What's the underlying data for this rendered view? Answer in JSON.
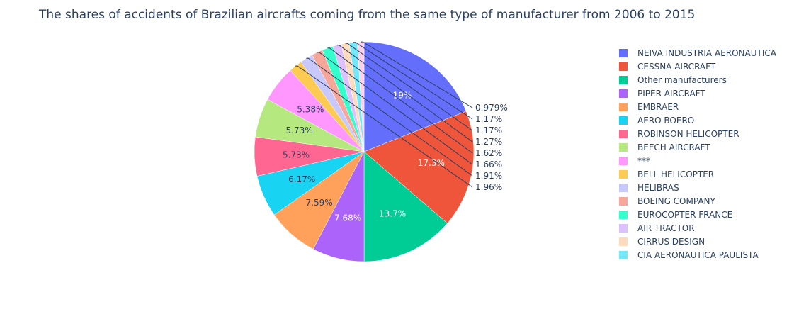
{
  "chart_data": {
    "type": "pie",
    "title": "The shares of accidents of Brazilian aircrafts coming from the same type of manufacturer from 2006 to 2015",
    "legend_position": "right",
    "slices": [
      {
        "label": "NEIVA INDUSTRIA AERONAUTICA",
        "value": 19,
        "value_label": "19%",
        "color": "#636efa"
      },
      {
        "label": "CESSNA AIRCRAFT",
        "value": 17.3,
        "value_label": "17.3%",
        "color": "#ef553b"
      },
      {
        "label": "Other manufacturers",
        "value": 13.7,
        "value_label": "13.7%",
        "color": "#00cc96"
      },
      {
        "label": "PIPER AIRCRAFT",
        "value": 7.68,
        "value_label": "7.68%",
        "color": "#ab63fa"
      },
      {
        "label": "EMBRAER",
        "value": 7.59,
        "value_label": "7.59%",
        "color": "#ffa15a"
      },
      {
        "label": "AERO BOERO",
        "value": 6.17,
        "value_label": "6.17%",
        "color": "#19d3f3"
      },
      {
        "label": "ROBINSON HELICOPTER",
        "value": 5.73,
        "value_label": "5.73%",
        "color": "#ff6692"
      },
      {
        "label": "BEECH AIRCRAFT",
        "value": 5.73,
        "value_label": "5.73%",
        "color": "#b6e880"
      },
      {
        "label": "***",
        "value": 5.38,
        "value_label": "5.38%",
        "color": "#ff97ff"
      },
      {
        "label": "BELL HELICOPTER",
        "value": 1.96,
        "value_label": "1.96%",
        "color": "#fecb52"
      },
      {
        "label": "HELIBRAS",
        "value": 1.91,
        "value_label": "1.91%",
        "color": "#c8c8fb"
      },
      {
        "label": "BOEING COMPANY",
        "value": 1.66,
        "value_label": "1.66%",
        "color": "#f7a79a"
      },
      {
        "label": "EUROCOPTER FRANCE",
        "value": 1.62,
        "value_label": "1.62%",
        "color": "#33ffcc"
      },
      {
        "label": "AIR TRACTOR",
        "value": 1.27,
        "value_label": "1.27%",
        "color": "#ddc1fc"
      },
      {
        "label": "CIRRUS DESIGN",
        "value": 1.17,
        "value_label": "1.17%",
        "color": "#ffdbbd"
      },
      {
        "label": "CIA AERONAUTICA PAULISTA",
        "value": 1.17,
        "value_label": "1.17%",
        "color": "#74e8f9"
      },
      {
        "label": "",
        "value": 0.979,
        "value_label": "0.979%",
        "color": "#ffd1e6"
      }
    ]
  }
}
